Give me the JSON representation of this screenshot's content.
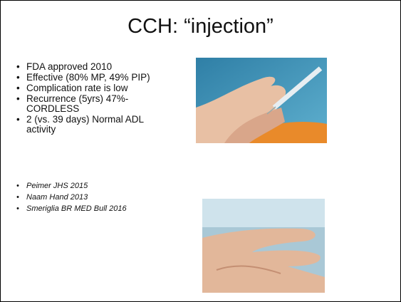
{
  "slide": {
    "title": "CCH: “injection”",
    "bullets": [
      "FDA approved 2010",
      "Effective (80% MP, 49% PIP)",
      "Complication rate is low",
      "Recurrence (5yrs) 47%-CORDLESS",
      "2 (vs. 39 days) Normal ADL activity"
    ],
    "references": [
      "Peimer JHS 2015",
      "Naam Hand 2013",
      "Smeriglia BR MED Bull 2016"
    ]
  }
}
